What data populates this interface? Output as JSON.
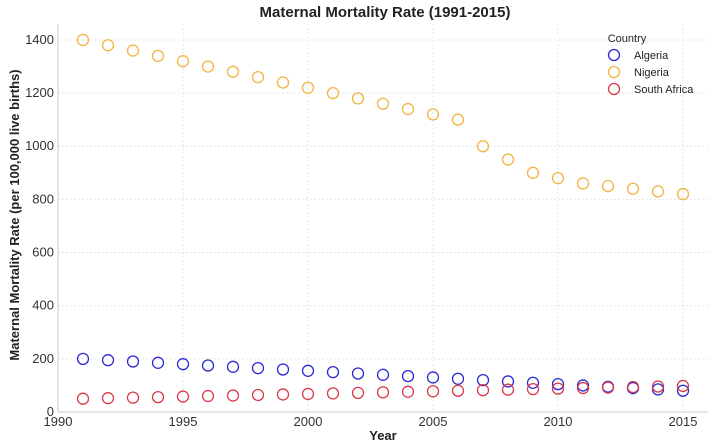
{
  "chart_data": {
    "type": "scatter",
    "title": "Maternal Mortality Rate (1991-2015)",
    "xlabel": "Year",
    "ylabel": "Maternal Mortality Rate (per 100,000 live births)",
    "xlim": [
      1990,
      2016
    ],
    "ylim": [
      0,
      1460
    ],
    "xticks": [
      1990,
      1995,
      2000,
      2005,
      2010,
      2015
    ],
    "yticks": [
      0,
      200,
      400,
      600,
      800,
      1000,
      1200,
      1400
    ],
    "grid": true,
    "marker": "hollow-circle",
    "legend": {
      "title": "Country",
      "position": "top-right"
    },
    "x": [
      1991,
      1992,
      1993,
      1994,
      1995,
      1996,
      1997,
      1998,
      1999,
      2000,
      2001,
      2002,
      2003,
      2004,
      2005,
      2006,
      2007,
      2008,
      2009,
      2010,
      2011,
      2012,
      2013,
      2014,
      2015
    ],
    "series": [
      {
        "name": "Algeria",
        "color": "#2a2ad6",
        "values": [
          200,
          195,
          190,
          185,
          180,
          175,
          170,
          165,
          160,
          155,
          150,
          145,
          140,
          135,
          130,
          125,
          120,
          115,
          110,
          105,
          100,
          95,
          90,
          85,
          80
        ]
      },
      {
        "name": "Nigeria",
        "color": "#f2b441",
        "values": [
          1400,
          1380,
          1360,
          1340,
          1320,
          1300,
          1280,
          1260,
          1240,
          1220,
          1200,
          1180,
          1160,
          1140,
          1120,
          1100,
          1000,
          950,
          900,
          880,
          860,
          850,
          840,
          830,
          820
        ]
      },
      {
        "name": "South Africa",
        "color": "#d93a4a",
        "values": [
          50,
          52,
          54,
          56,
          58,
          60,
          62,
          64,
          66,
          68,
          70,
          72,
          74,
          76,
          78,
          80,
          82,
          84,
          86,
          88,
          90,
          92,
          94,
          96,
          98
        ]
      }
    ]
  }
}
